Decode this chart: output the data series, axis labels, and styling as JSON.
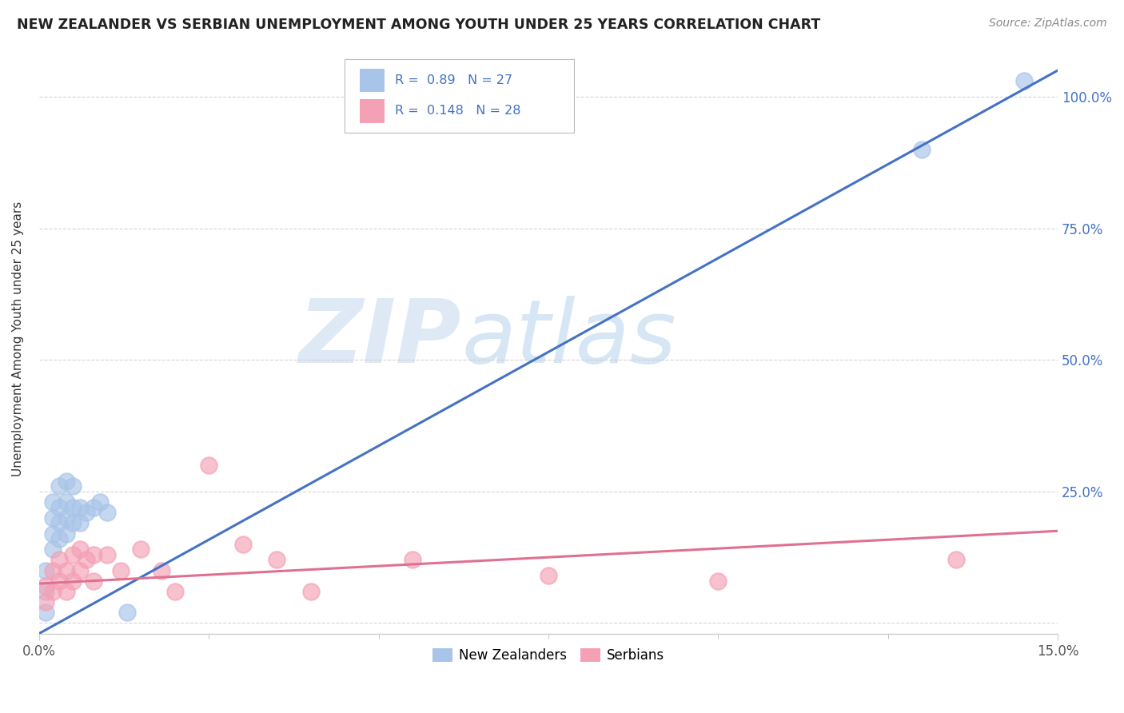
{
  "title": "NEW ZEALANDER VS SERBIAN UNEMPLOYMENT AMONG YOUTH UNDER 25 YEARS CORRELATION CHART",
  "source": "Source: ZipAtlas.com",
  "ylabel": "Unemployment Among Youth under 25 years",
  "nz_R": 0.89,
  "nz_N": 27,
  "sr_R": 0.148,
  "sr_N": 28,
  "xlim": [
    0.0,
    0.15
  ],
  "ylim": [
    -0.02,
    1.1
  ],
  "yticks": [
    0.0,
    0.25,
    0.5,
    0.75,
    1.0
  ],
  "ytick_labels": [
    "",
    "25.0%",
    "50.0%",
    "75.0%",
    "100.0%"
  ],
  "xticks": [
    0.0,
    0.15
  ],
  "xtick_labels": [
    "0.0%",
    "15.0%"
  ],
  "nz_color": "#a8c4e8",
  "sr_color": "#f4a0b5",
  "nz_line_color": "#4472c4",
  "sr_line_color": "#e07090",
  "watermark_zip": "ZIP",
  "watermark_atlas": "atlas",
  "background_color": "#ffffff",
  "nz_x": [
    0.001,
    0.001,
    0.001,
    0.002,
    0.002,
    0.002,
    0.002,
    0.003,
    0.003,
    0.003,
    0.003,
    0.004,
    0.004,
    0.004,
    0.004,
    0.005,
    0.005,
    0.005,
    0.006,
    0.006,
    0.007,
    0.008,
    0.009,
    0.01,
    0.013,
    0.13,
    0.145
  ],
  "nz_y": [
    0.02,
    0.06,
    0.1,
    0.14,
    0.17,
    0.2,
    0.23,
    0.16,
    0.19,
    0.22,
    0.26,
    0.17,
    0.2,
    0.23,
    0.27,
    0.19,
    0.22,
    0.26,
    0.19,
    0.22,
    0.21,
    0.22,
    0.23,
    0.21,
    0.02,
    0.9,
    1.03
  ],
  "sr_x": [
    0.001,
    0.001,
    0.002,
    0.002,
    0.003,
    0.003,
    0.004,
    0.004,
    0.005,
    0.005,
    0.006,
    0.006,
    0.007,
    0.008,
    0.008,
    0.01,
    0.012,
    0.015,
    0.018,
    0.02,
    0.025,
    0.03,
    0.035,
    0.04,
    0.055,
    0.075,
    0.1,
    0.135
  ],
  "sr_y": [
    0.04,
    0.07,
    0.06,
    0.1,
    0.08,
    0.12,
    0.06,
    0.1,
    0.08,
    0.13,
    0.1,
    0.14,
    0.12,
    0.08,
    0.13,
    0.13,
    0.1,
    0.14,
    0.1,
    0.06,
    0.3,
    0.15,
    0.12,
    0.06,
    0.12,
    0.09,
    0.08,
    0.12
  ],
  "nz_line_x0": 0.0,
  "nz_line_y0": -0.02,
  "nz_line_x1": 0.15,
  "nz_line_y1": 1.05,
  "sr_line_x0": 0.0,
  "sr_line_y0": 0.075,
  "sr_line_x1": 0.15,
  "sr_line_y1": 0.175
}
